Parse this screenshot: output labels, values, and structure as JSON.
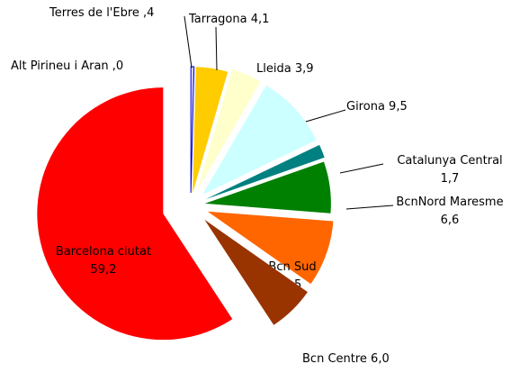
{
  "chart_data": {
    "type": "pie",
    "categories": [
      "Alt Pirineu i Aran",
      "Terres de l'Ebre",
      "Tarragona",
      "Lleida",
      "Girona",
      "Catalunya Central",
      "BcnNord Maresme",
      "Bcn Sud",
      "Bcn Centre",
      "Barcelona ciutat"
    ],
    "values": [
      0,
      0.4,
      4.1,
      3.9,
      9.5,
      1.7,
      6.6,
      8.5,
      6.0,
      59.2
    ],
    "value_labels": [
      ",0",
      ",4",
      "4,1",
      "3,9",
      "9,5",
      "1,7",
      "6,6",
      "8,5",
      "6,0",
      "59,2"
    ],
    "colors": [
      "#0000cc",
      "#ccccff",
      "#ffcc00",
      "#ffffcc",
      "#ccffff",
      "#008080",
      "#008000",
      "#ff6600",
      "#993300",
      "#ff0000"
    ]
  }
}
